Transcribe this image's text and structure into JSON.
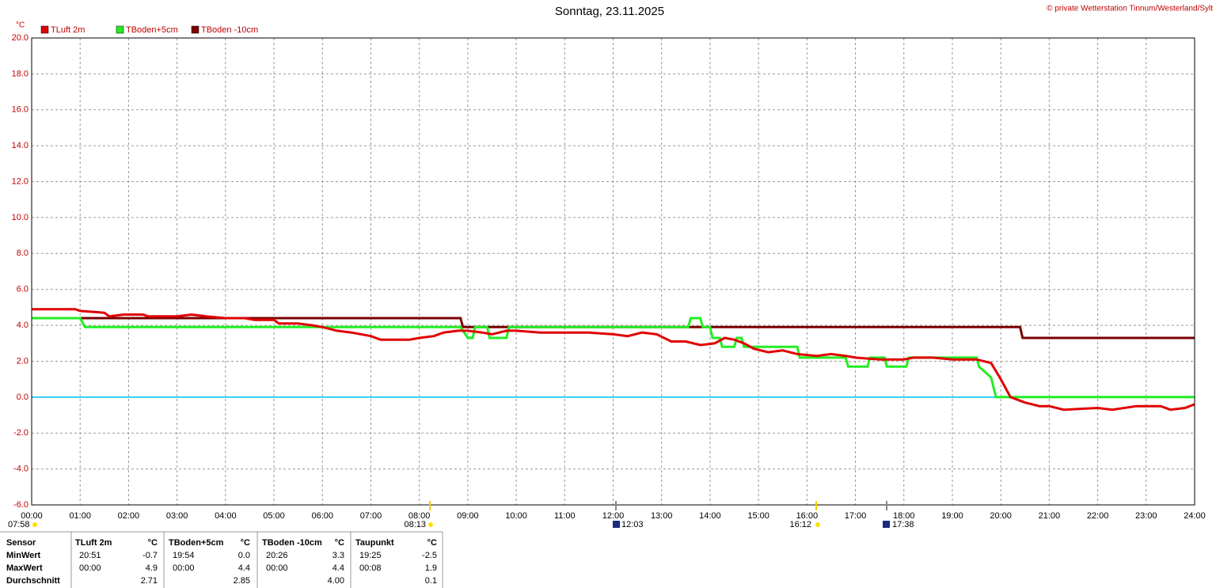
{
  "chart_data": {
    "type": "line",
    "title": "Sonntag, 23.11.2025",
    "subtitle": "© private Wetterstation Tinnum/Westerland/Sylt",
    "y_label": "°C",
    "grid": true,
    "legend": "top-left",
    "xlim": [
      0,
      24
    ],
    "ylim": [
      -6,
      20
    ],
    "xticks": [
      {
        "value": 0,
        "label": "00:00"
      },
      {
        "value": 1,
        "label": "01:00"
      },
      {
        "value": 2,
        "label": "02:00"
      },
      {
        "value": 3,
        "label": "03:00"
      },
      {
        "value": 4,
        "label": "04:00"
      },
      {
        "value": 5,
        "label": "05:00"
      },
      {
        "value": 6,
        "label": "06:00"
      },
      {
        "value": 7,
        "label": "07:00"
      },
      {
        "value": 8,
        "label": "08:00"
      },
      {
        "value": 9,
        "label": "09:00"
      },
      {
        "value": 10,
        "label": "10:00"
      },
      {
        "value": 11,
        "label": "11:00"
      },
      {
        "value": 12,
        "label": "12:00"
      },
      {
        "value": 13,
        "label": "13:00"
      },
      {
        "value": 14,
        "label": "14:00"
      },
      {
        "value": 15,
        "label": "15:00"
      },
      {
        "value": 16,
        "label": "16:00"
      },
      {
        "value": 17,
        "label": "17:00"
      },
      {
        "value": 18,
        "label": "18:00"
      },
      {
        "value": 19,
        "label": "19:00"
      },
      {
        "value": 20,
        "label": "20:00"
      },
      {
        "value": 21,
        "label": "21:00"
      },
      {
        "value": 22,
        "label": "22:00"
      },
      {
        "value": 23,
        "label": "23:00"
      },
      {
        "value": 24,
        "label": "24:00"
      }
    ],
    "yticks": [
      {
        "value": 20,
        "label": "20.0"
      },
      {
        "value": 18,
        "label": "18.0"
      },
      {
        "value": 16,
        "label": "16.0"
      },
      {
        "value": 14,
        "label": "14.0"
      },
      {
        "value": 12,
        "label": "12.0"
      },
      {
        "value": 10,
        "label": "10.0"
      },
      {
        "value": 8,
        "label": "8.0"
      },
      {
        "value": 6,
        "label": "6.0"
      },
      {
        "value": 4,
        "label": "4.0"
      },
      {
        "value": 2,
        "label": "2.0"
      },
      {
        "value": 0,
        "label": "0.0"
      },
      {
        "value": -2,
        "label": "-2.0"
      },
      {
        "value": -4,
        "label": "-4.0"
      },
      {
        "value": -6,
        "label": "-6.0"
      }
    ],
    "zero_line_color": "#33ccff",
    "annotations": [
      "07:58",
      "08:13",
      "12:03",
      "16:12",
      "17:38"
    ],
    "series": [
      {
        "name": "TLuft 2m",
        "color": "#e00000",
        "x": [
          0,
          0.9,
          1.0,
          1.5,
          1.6,
          1.9,
          2.3,
          2.4,
          3.0,
          3.3,
          3.6,
          4.0,
          4.4,
          4.6,
          5.0,
          5.1,
          5.5,
          5.8,
          6.0,
          6.3,
          6.6,
          7.0,
          7.2,
          7.5,
          7.8,
          8.0,
          8.3,
          8.5,
          8.8,
          9.0,
          9.3,
          9.5,
          9.8,
          10.0,
          10.5,
          11.0,
          11.5,
          12.0,
          12.3,
          12.6,
          12.9,
          13.2,
          13.5,
          13.8,
          14.1,
          14.3,
          14.5,
          14.7,
          14.9,
          15.2,
          15.5,
          15.8,
          16.2,
          16.5,
          16.8,
          17.0,
          17.5,
          18.0,
          18.2,
          18.6,
          19.0,
          19.5,
          19.8,
          20.0,
          20.2,
          20.5,
          20.8,
          21.0,
          21.3,
          22.0,
          22.3,
          22.8,
          23.3,
          23.5,
          23.8,
          24.0
        ],
        "values": [
          4.9,
          4.9,
          4.8,
          4.7,
          4.5,
          4.6,
          4.6,
          4.5,
          4.5,
          4.6,
          4.5,
          4.4,
          4.4,
          4.3,
          4.3,
          4.1,
          4.1,
          4.0,
          3.9,
          3.7,
          3.6,
          3.4,
          3.2,
          3.2,
          3.2,
          3.3,
          3.4,
          3.6,
          3.7,
          3.7,
          3.6,
          3.5,
          3.7,
          3.7,
          3.6,
          3.6,
          3.6,
          3.5,
          3.4,
          3.6,
          3.5,
          3.1,
          3.1,
          2.9,
          3.0,
          3.3,
          3.2,
          3.0,
          2.7,
          2.5,
          2.6,
          2.4,
          2.3,
          2.4,
          2.3,
          2.2,
          2.1,
          2.1,
          2.2,
          2.2,
          2.1,
          2.1,
          1.9,
          1.0,
          0.0,
          -0.3,
          -0.5,
          -0.5,
          -0.7,
          -0.6,
          -0.7,
          -0.5,
          -0.5,
          -0.7,
          -0.6,
          -0.4
        ]
      },
      {
        "name": "TBoden+5cm",
        "color": "#22ee22",
        "x": [
          0,
          1.0,
          1.1,
          8.85,
          8.9,
          9.0,
          9.1,
          9.15,
          9.4,
          9.45,
          9.8,
          9.85,
          13.55,
          13.6,
          13.8,
          13.85,
          14.0,
          14.05,
          14.2,
          14.25,
          14.5,
          14.55,
          14.65,
          14.7,
          15.8,
          15.85,
          16.8,
          16.85,
          17.25,
          17.3,
          17.6,
          17.65,
          18.05,
          18.1,
          19.5,
          19.55,
          19.8,
          19.9,
          24.0
        ],
        "values": [
          4.4,
          4.4,
          3.9,
          3.9,
          3.7,
          3.3,
          3.3,
          3.9,
          3.9,
          3.3,
          3.3,
          3.9,
          3.9,
          4.4,
          4.4,
          3.9,
          3.9,
          3.3,
          3.3,
          2.8,
          2.8,
          3.3,
          3.3,
          2.8,
          2.8,
          2.2,
          2.2,
          1.7,
          1.7,
          2.2,
          2.2,
          1.7,
          1.7,
          2.2,
          2.2,
          1.7,
          1.1,
          0.0,
          0.0
        ]
      },
      {
        "name": "TBoden -10cm",
        "color": "#7a0000",
        "x": [
          0,
          8.85,
          8.9,
          20.4,
          20.45,
          24.0
        ],
        "values": [
          4.4,
          4.4,
          3.9,
          3.9,
          3.3,
          3.3
        ]
      }
    ]
  },
  "table": {
    "header": [
      "Sensor",
      "TLuft 2m",
      "°C",
      "TBoden+5cm",
      "°C",
      "TBoden -10cm",
      "°C",
      "Taupunkt",
      "°C"
    ],
    "rows": [
      [
        "MinWert",
        "20:51",
        "-0.7",
        "19:54",
        "0.0",
        "20:26",
        "3.3",
        "19:25",
        "-2.5"
      ],
      [
        "MaxWert",
        "00:00",
        "4.9",
        "00:00",
        "4.4",
        "00:00",
        "4.4",
        "00:08",
        "1.9"
      ],
      [
        "Durchschnitt",
        null,
        "2.71",
        null,
        "2.85",
        null,
        "4.00",
        null,
        "0.1"
      ]
    ]
  }
}
